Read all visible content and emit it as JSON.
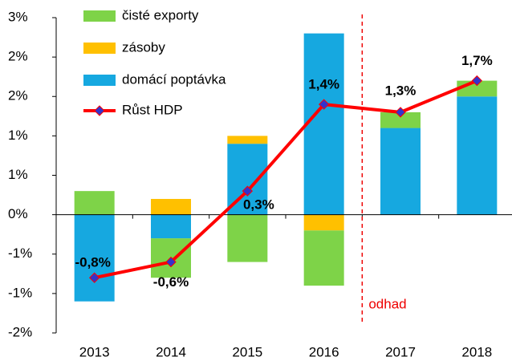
{
  "chart_data": {
    "type": "bar",
    "categories": [
      "2013",
      "2014",
      "2015",
      "2016",
      "2017",
      "2018"
    ],
    "series": [
      {
        "name": "čisté exporty",
        "color": "#7ed348",
        "values": [
          0.3,
          -0.5,
          -0.6,
          -0.7,
          0.2,
          0.2
        ]
      },
      {
        "name": "zásoby",
        "color": "#ffc000",
        "values": [
          0,
          0.2,
          0.1,
          -0.2,
          0,
          0
        ]
      },
      {
        "name": "domácí poptávka",
        "color": "#16a8e0",
        "values": [
          -1.1,
          -0.3,
          0.9,
          2.3,
          1.1,
          1.5
        ]
      },
      {
        "name": "Růst HDP",
        "type": "line",
        "color": "#ff0000",
        "marker_color": "#3333cc",
        "values": [
          -0.8,
          -0.6,
          0.3,
          1.4,
          1.3,
          1.7
        ],
        "value_labels": [
          "-0,8%",
          "-0,6%",
          "0,3%",
          "1,4%",
          "1,3%",
          "1,7%"
        ]
      }
    ],
    "ylim": [
      -1.5,
      2.5
    ],
    "yticks": [
      {
        "value": -1.5,
        "label": "-2%"
      },
      {
        "value": -1.0,
        "label": "-1%"
      },
      {
        "value": -0.5,
        "label": "-1%"
      },
      {
        "value": 0,
        "label": "0%"
      },
      {
        "value": 0.5,
        "label": "1%"
      },
      {
        "value": 1.0,
        "label": "1%"
      },
      {
        "value": 1.5,
        "label": "2%"
      },
      {
        "value": 2.0,
        "label": "2%"
      },
      {
        "value": 2.5,
        "label": "3%"
      }
    ],
    "annotation": "odhad",
    "legend": "upper left"
  }
}
